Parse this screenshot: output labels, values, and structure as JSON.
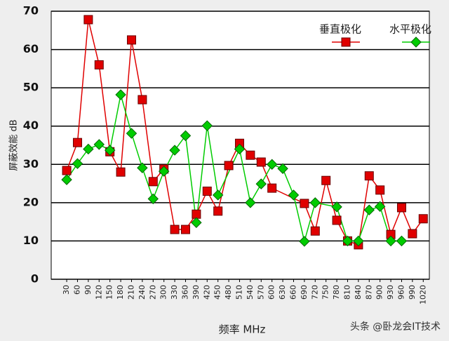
{
  "chart_data": {
    "type": "line",
    "ylabel": "屏蔽效能 dB",
    "xlabel": "频率 MHz",
    "watermark": "头条 @卧龙会IT技术",
    "xlim": [
      -13,
      1037
    ],
    "xticks": [
      30,
      60,
      90,
      120,
      150,
      180,
      210,
      240,
      270,
      300,
      330,
      360,
      390,
      420,
      450,
      480,
      510,
      540,
      570,
      600,
      630,
      660,
      690,
      720,
      750,
      780,
      810,
      840,
      870,
      900,
      930,
      960,
      990,
      1020
    ],
    "ylim": [
      0,
      70
    ],
    "yticks": [
      0,
      10,
      20,
      30,
      40,
      50,
      60,
      70
    ],
    "grid": true,
    "legend": "top-right",
    "series": [
      {
        "name": "垂直极化",
        "color": "#e00000",
        "marker": "square",
        "x": [
          30,
          60,
          90,
          120,
          150,
          180,
          210,
          240,
          270,
          300,
          330,
          360,
          390,
          420,
          450,
          480,
          510,
          540,
          570,
          600,
          690,
          720,
          750,
          780,
          810,
          840,
          870,
          900,
          930,
          960,
          990,
          1020
        ],
        "values": [
          28.4,
          35.7,
          67.8,
          56,
          33.3,
          28,
          62.5,
          46.9,
          25.5,
          28.8,
          13,
          13,
          17,
          23,
          17.8,
          29.7,
          35.5,
          32.4,
          30.6,
          23.8,
          19.8,
          12.6,
          25.8,
          15.4,
          10,
          9,
          27,
          23.3,
          11.7,
          18.7,
          11.9,
          15.8
        ]
      },
      {
        "name": "水平极化",
        "color": "#00cc00",
        "marker": "diamond",
        "x": [
          30,
          60,
          90,
          120,
          150,
          180,
          210,
          240,
          270,
          300,
          330,
          360,
          390,
          420,
          450,
          510,
          540,
          570,
          600,
          630,
          660,
          690,
          720,
          780,
          810,
          840,
          870,
          900,
          930,
          960
        ],
        "values": [
          26,
          30.2,
          34,
          35.2,
          33.7,
          48.2,
          38.1,
          29.1,
          21,
          28.2,
          33.7,
          37.5,
          14.8,
          40.1,
          22,
          34,
          20,
          24.9,
          30,
          28.9,
          22,
          9.9,
          20,
          18.9,
          10,
          10,
          18.1,
          19,
          10,
          10
        ]
      }
    ]
  }
}
